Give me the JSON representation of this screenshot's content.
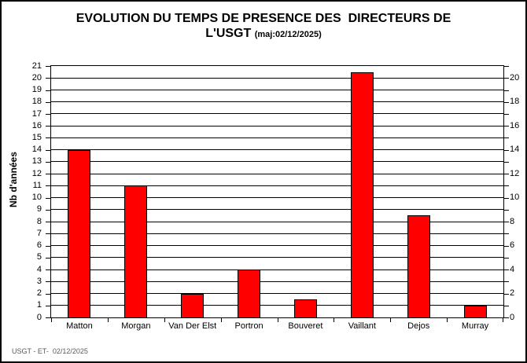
{
  "title": {
    "line1": "EVOLUTION DU TEMPS DE PRESENCE DES  DIRECTEURS DE",
    "line2_main": "L'USGT",
    "line2_note": "(maj:02/12/2025)"
  },
  "footer": {
    "text": "USGT - ET-  02/12/2025"
  },
  "chart_data": {
    "type": "bar",
    "title": "EVOLUTION DU TEMPS DE PRESENCE DES DIRECTEURS DE L'USGT (maj:02/12/2025)",
    "categories": [
      "Matton",
      "Morgan",
      "Van Der Elst",
      "Portron",
      "Bouveret",
      "Vaillant",
      "Dejos",
      "Murray"
    ],
    "values": [
      14,
      11,
      2,
      4,
      1.5,
      20.5,
      8.5,
      1
    ],
    "xlabel": "",
    "ylabel": "Nb d'années",
    "ylim": [
      0,
      21
    ],
    "left_axis_tick_labels": [
      0,
      1,
      2,
      3,
      4,
      5,
      6,
      7,
      8,
      9,
      10,
      11,
      12,
      13,
      14,
      15,
      16,
      17,
      18,
      19,
      20,
      21
    ],
    "right_axis_tick_labels": [
      0,
      2,
      4,
      6,
      8,
      10,
      12,
      14,
      16,
      18,
      20
    ],
    "grid": true,
    "legend": false,
    "bar_color": "#FF0000",
    "bar_border_color": "#000000",
    "gridline_color": "#000000",
    "background_color": "#FFFFFF"
  }
}
